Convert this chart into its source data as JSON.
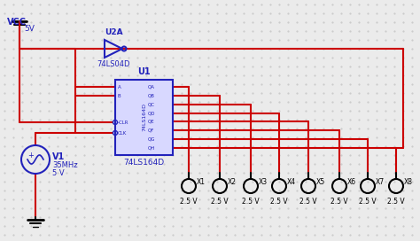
{
  "bg_color": "#ebebeb",
  "dot_color": "#c8c8c8",
  "wire_color": "#cc0000",
  "component_color": "#2222bb",
  "text_color_dark": "#000000",
  "vcc_label": "VCC",
  "vcc_voltage": "5V",
  "v1_label": "V1",
  "v1_freq": "35MHz",
  "v1_voltage": "5 V",
  "u2a_label": "U2A",
  "u2a_sub": "74LS04D",
  "u1_label": "U1",
  "u1_sub": "74LS164D",
  "probe_labels": [
    "X1",
    "X2",
    "X3",
    "X4",
    "X5",
    "X6",
    "X7",
    "X8"
  ],
  "probe_voltages": [
    "2.5 V",
    "2.5 V",
    "2.5 V",
    "2.5 V",
    "2.5 V",
    "2.5 V",
    "2.5 V",
    "2.5 V"
  ],
  "figsize": [
    4.74,
    2.72
  ],
  "dpi": 100
}
